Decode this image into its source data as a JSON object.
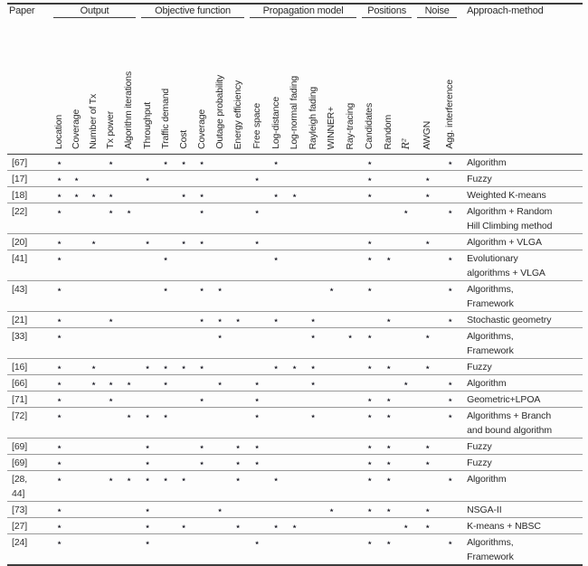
{
  "table": {
    "star_symbol": "⋆",
    "groups": [
      {
        "label": "Paper",
        "cols": 0,
        "underline": false
      },
      {
        "label": "Output",
        "cols": 5,
        "underline": true
      },
      {
        "label": "Objective function",
        "cols": 6,
        "underline": true
      },
      {
        "label": "Propagation model",
        "cols": 6,
        "underline": true
      },
      {
        "label": "Positions",
        "cols": 3,
        "underline": true
      },
      {
        "label": "Noise",
        "cols": 2,
        "underline": true
      },
      {
        "label": "Approach-method",
        "cols": 0,
        "underline": false
      }
    ],
    "columns": [
      {
        "label": "Location"
      },
      {
        "label": "Coverage"
      },
      {
        "label": "Number of Tx"
      },
      {
        "label": "Tx power"
      },
      {
        "label": "Algorithm iterations"
      },
      {
        "label": "Throughput"
      },
      {
        "label": "Traffic demand"
      },
      {
        "label": "Cost"
      },
      {
        "label": "Coverage"
      },
      {
        "label": "Outage probability"
      },
      {
        "label": "Energy efficiency"
      },
      {
        "label": "Free space"
      },
      {
        "label": "Log-distance"
      },
      {
        "label": "Log-normal fading"
      },
      {
        "label": "Rayleigh fading"
      },
      {
        "label": "WINNER+"
      },
      {
        "label": "Ray-tracing"
      },
      {
        "label": "Candidates"
      },
      {
        "label": "Random"
      },
      {
        "label": "R²",
        "math": true
      },
      {
        "label": "AWGN"
      },
      {
        "label": "Agg. interference"
      }
    ],
    "rows": [
      {
        "paper_lines": [
          "[67]"
        ],
        "stars": [
          0,
          3,
          6,
          7,
          8,
          12,
          17,
          21
        ],
        "approach_lines": [
          "Algorithm"
        ]
      },
      {
        "paper_lines": [
          "[17]"
        ],
        "stars": [
          0,
          1,
          5,
          11,
          17,
          20
        ],
        "approach_lines": [
          "Fuzzy"
        ]
      },
      {
        "paper_lines": [
          "[18]"
        ],
        "stars": [
          0,
          1,
          2,
          3,
          7,
          8,
          12,
          13,
          17,
          20
        ],
        "approach_lines": [
          "Weighted K-means"
        ]
      },
      {
        "paper_lines": [
          "[22]"
        ],
        "stars": [
          0,
          3,
          4,
          8,
          11,
          19,
          21
        ],
        "approach_lines": [
          "Algorithm + Random",
          "Hill Climbing method"
        ]
      },
      {
        "paper_lines": [
          "[20]"
        ],
        "stars": [
          0,
          2,
          5,
          7,
          8,
          11,
          17,
          20
        ],
        "approach_lines": [
          "Algorithm + VLGA"
        ]
      },
      {
        "paper_lines": [
          "[41]"
        ],
        "stars": [
          0,
          6,
          12,
          17,
          18,
          21
        ],
        "approach_lines": [
          "Evolutionary",
          "algorithms + VLGA"
        ]
      },
      {
        "paper_lines": [
          "[43]"
        ],
        "stars": [
          0,
          6,
          8,
          9,
          15,
          17,
          21
        ],
        "approach_lines": [
          "Algorithms,",
          "Framework"
        ]
      },
      {
        "paper_lines": [
          "[21]"
        ],
        "stars": [
          0,
          3,
          8,
          9,
          10,
          12,
          14,
          18,
          21
        ],
        "approach_lines": [
          "Stochastic geometry"
        ]
      },
      {
        "paper_lines": [
          "[33]"
        ],
        "stars": [
          0,
          9,
          14,
          16,
          17,
          20
        ],
        "approach_lines": [
          "Algorithms,",
          "Framework"
        ]
      },
      {
        "paper_lines": [
          "[16]"
        ],
        "stars": [
          0,
          2,
          5,
          6,
          7,
          8,
          12,
          13,
          14,
          17,
          18,
          20
        ],
        "approach_lines": [
          "Fuzzy"
        ]
      },
      {
        "paper_lines": [
          "[66]"
        ],
        "stars": [
          0,
          2,
          3,
          4,
          6,
          9,
          11,
          14,
          19,
          21
        ],
        "approach_lines": [
          "Algorithm"
        ]
      },
      {
        "paper_lines": [
          "[71]"
        ],
        "stars": [
          0,
          3,
          8,
          11,
          17,
          18,
          21
        ],
        "approach_lines": [
          "Geometric+LPOA"
        ]
      },
      {
        "paper_lines": [
          "[72]"
        ],
        "stars": [
          0,
          4,
          5,
          6,
          11,
          14,
          17,
          18,
          21
        ],
        "approach_lines": [
          "Algorithms + Branch",
          "and bound algorithm"
        ]
      },
      {
        "paper_lines": [
          "[69]"
        ],
        "stars": [
          0,
          5,
          8,
          10,
          11,
          17,
          18,
          20
        ],
        "approach_lines": [
          "Fuzzy"
        ]
      },
      {
        "paper_lines": [
          "[69]"
        ],
        "stars": [
          0,
          5,
          8,
          10,
          11,
          17,
          18,
          20
        ],
        "approach_lines": [
          "Fuzzy"
        ]
      },
      {
        "paper_lines": [
          "[28,",
          "44]"
        ],
        "stars": [
          0,
          3,
          4,
          5,
          6,
          7,
          10,
          12,
          17,
          18,
          21
        ],
        "approach_lines": [
          "Algorithm"
        ]
      },
      {
        "paper_lines": [
          "[73]"
        ],
        "stars": [
          0,
          5,
          9,
          15,
          17,
          18,
          20
        ],
        "approach_lines": [
          "NSGA-II"
        ]
      },
      {
        "paper_lines": [
          "[27]"
        ],
        "stars": [
          0,
          5,
          7,
          10,
          12,
          13,
          19,
          20
        ],
        "approach_lines": [
          "K-means + NBSC"
        ]
      },
      {
        "paper_lines": [
          "[24]"
        ],
        "stars": [
          0,
          5,
          11,
          17,
          18,
          21
        ],
        "approach_lines": [
          "Algorithms,",
          "Framework"
        ]
      }
    ]
  }
}
